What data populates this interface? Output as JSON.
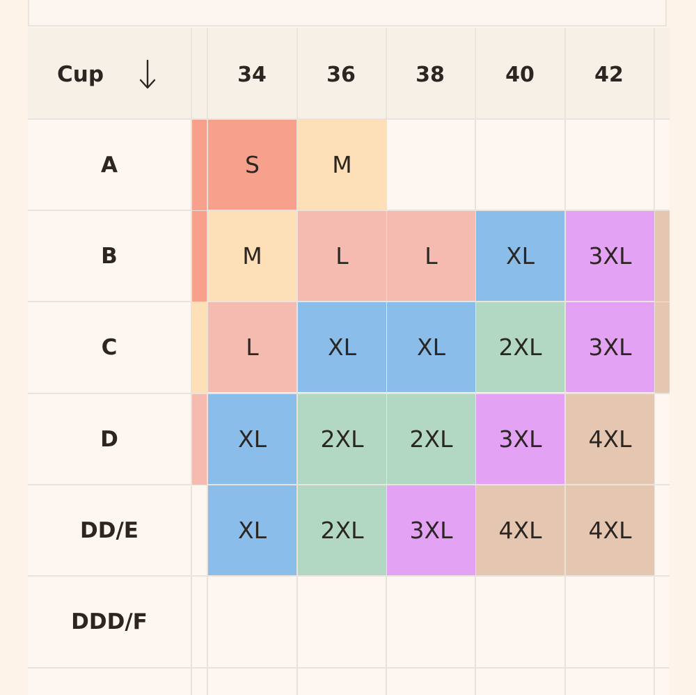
{
  "header": {
    "cup_label": "Cup",
    "sort_icon": "arrow-down-icon",
    "bands": [
      "34",
      "36",
      "38",
      "40",
      "42"
    ]
  },
  "rows": [
    {
      "cup": "A",
      "sizes": [
        "S",
        "M",
        "",
        "",
        ""
      ]
    },
    {
      "cup": "B",
      "sizes": [
        "M",
        "L",
        "L",
        "XL",
        "3XL"
      ]
    },
    {
      "cup": "C",
      "sizes": [
        "L",
        "XL",
        "XL",
        "2XL",
        "3XL"
      ]
    },
    {
      "cup": "D",
      "sizes": [
        "XL",
        "2XL",
        "2XL",
        "3XL",
        "4XL"
      ]
    },
    {
      "cup": "DD/E",
      "sizes": [
        "XL",
        "2XL",
        "3XL",
        "4XL",
        "4XL"
      ]
    },
    {
      "cup": "DDD/F",
      "sizes": [
        "",
        "",
        "",
        "",
        ""
      ]
    }
  ],
  "size_colors": {
    "S": "#f7a08b",
    "M": "#fde0b7",
    "L": "#f5bbb0",
    "XL": "#8bbdea",
    "2XL": "#b2d7c3",
    "3XL": "#e4a2f5",
    "4XL": "#e5c7b1"
  },
  "colors": {
    "page_background": "#fdf3e8",
    "header_background": "#f6f0e7",
    "row_background": "#fef6f1",
    "grid_line": "#e9e3dc",
    "text": "#2b2622"
  }
}
